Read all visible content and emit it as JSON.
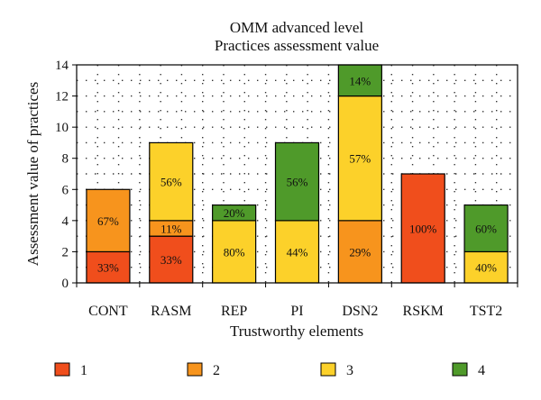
{
  "chart_data": {
    "type": "bar",
    "stacked": true,
    "title_line1": "OMM advanced level",
    "title_line2": "Practices assessment value",
    "xlabel": "Trustworthy elements",
    "ylabel": "Assessment value of practices",
    "ylim": [
      0,
      14
    ],
    "yticks": [
      0,
      2,
      4,
      6,
      8,
      10,
      12,
      14
    ],
    "grid": true,
    "legend_position": "bottom",
    "categories": [
      "CONT",
      "RASM",
      "REP",
      "PI",
      "DSN2",
      "RSKM",
      "TST2"
    ],
    "series": [
      {
        "name": "1",
        "color": "#f04e1c",
        "values": [
          2,
          3,
          0,
          0,
          0,
          7,
          0
        ],
        "labels": [
          "33%",
          "33%",
          "",
          "",
          "",
          "100%",
          ""
        ]
      },
      {
        "name": "2",
        "color": "#f7941d",
        "values": [
          4,
          1,
          0,
          0,
          4,
          0,
          0
        ],
        "labels": [
          "67%",
          "11%",
          "",
          "",
          "29%",
          "",
          ""
        ]
      },
      {
        "name": "3",
        "color": "#fcd12a",
        "values": [
          0,
          5,
          4,
          4,
          8,
          0,
          2
        ],
        "labels": [
          "",
          "56%",
          "80%",
          "44%",
          "57%",
          "",
          "40%"
        ]
      },
      {
        "name": "4",
        "color": "#4f9a2a",
        "values": [
          0,
          0,
          1,
          5,
          2,
          0,
          3
        ],
        "labels": [
          "",
          "",
          "20%",
          "56%",
          "14%",
          "",
          "60%"
        ]
      }
    ]
  }
}
